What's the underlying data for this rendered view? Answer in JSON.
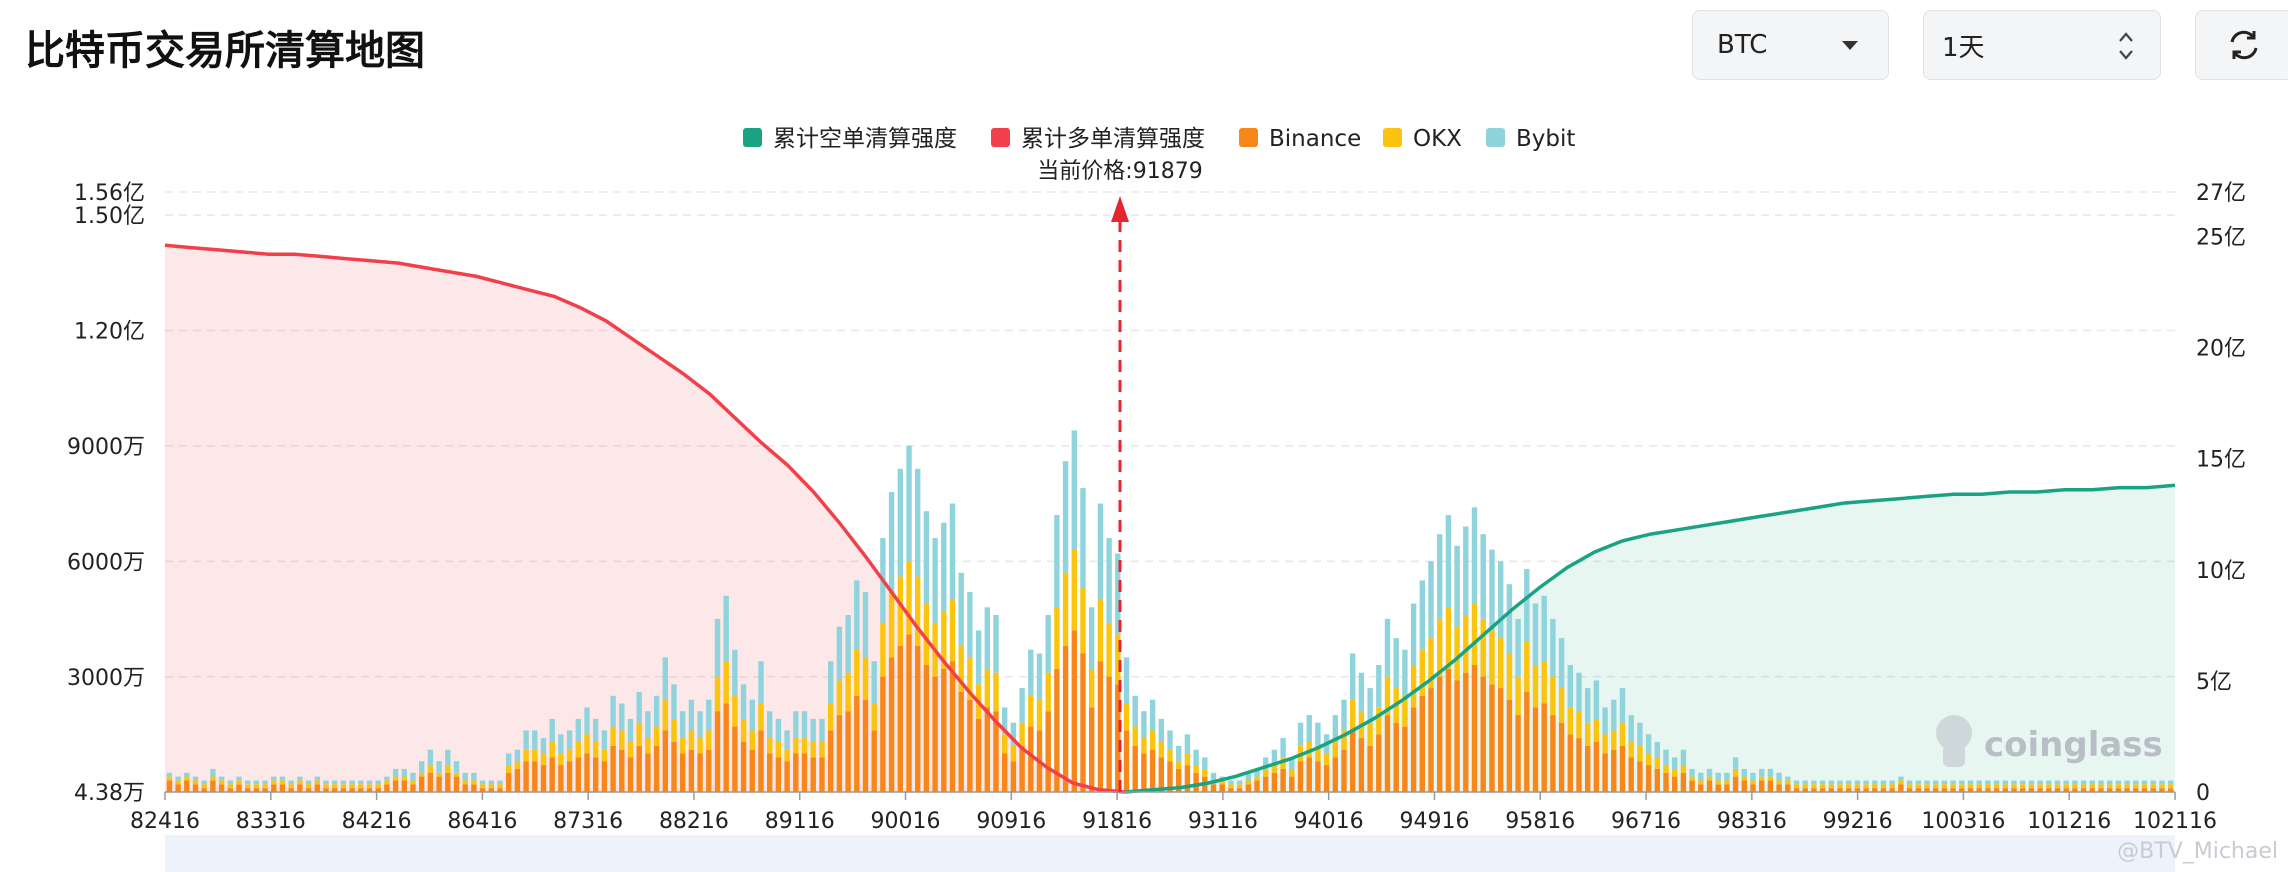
{
  "header": {
    "title": "比特币交易所清算地图",
    "symbol_select": "BTC",
    "period_select": "1天",
    "refresh_icon": "refresh-icon"
  },
  "watermark": {
    "brand": "coinglass",
    "user_tag": "@BTV_Michael"
  },
  "colors": {
    "short_cum": "#1aa383",
    "long_cum": "#f2404a",
    "binance": "#f7861b",
    "okx": "#fbc40f",
    "bybit": "#8fd4dd",
    "price_line": "#e5262e"
  },
  "chart_data": {
    "type": "bar",
    "current_price_label": "当前价格:91879",
    "current_price": 91879,
    "legend": [
      "累计空单清算强度",
      "累计多单清算强度",
      "Binance",
      "OKX",
      "Bybit"
    ],
    "legend_placement": "top-center",
    "x_tick_labels": [
      "82416",
      "83316",
      "84216",
      "86416",
      "87316",
      "88216",
      "89116",
      "90016",
      "90916",
      "91816",
      "93116",
      "94016",
      "94916",
      "95816",
      "96716",
      "98316",
      "99216",
      "100316",
      "101216",
      "102116"
    ],
    "y_left_tick_labels": [
      "1.56亿",
      "1.50亿",
      "1.20亿",
      "9000万",
      "6000万",
      "3000万",
      "4.38万"
    ],
    "y_left_ticks": [
      156000000,
      150000000,
      120000000,
      90000000,
      60000000,
      30000000,
      43800
    ],
    "y_left_range": [
      43800,
      156000000
    ],
    "y_right_tick_labels": [
      "27亿",
      "25亿",
      "20亿",
      "15亿",
      "10亿",
      "5亿",
      "0"
    ],
    "y_right_ticks": [
      2700000000,
      2500000000,
      2000000000,
      1500000000,
      1000000000,
      500000000,
      0
    ],
    "y_right_range": [
      0,
      2700000000
    ],
    "grid": true,
    "bars": {
      "binance": [
        3,
        2,
        3,
        2,
        1,
        3,
        2,
        1,
        2,
        1,
        1,
        1,
        2,
        2,
        1,
        2,
        1,
        2,
        1,
        1,
        1,
        1,
        1,
        1,
        1,
        2,
        3,
        3,
        2,
        4,
        5,
        4,
        5,
        4,
        2,
        2,
        1,
        1,
        1,
        5,
        6,
        8,
        8,
        7,
        9,
        7,
        8,
        9,
        10,
        9,
        8,
        12,
        11,
        9,
        12,
        10,
        12,
        16,
        13,
        10,
        11,
        10,
        11,
        21,
        23,
        17,
        13,
        11,
        16,
        10,
        9,
        8,
        10,
        10,
        9,
        9,
        16,
        20,
        21,
        25,
        24,
        16,
        30,
        35,
        38,
        41,
        38,
        33,
        30,
        32,
        34,
        26,
        24,
        19,
        22,
        21,
        10,
        8,
        12,
        17,
        16,
        21,
        32,
        38,
        42,
        36,
        22,
        34,
        30,
        28,
        16,
        12,
        10,
        11,
        9,
        8,
        6,
        7,
        5,
        4,
        2,
        2,
        1,
        1,
        2,
        3,
        4,
        5,
        6,
        4,
        8,
        9,
        8,
        7,
        9,
        11,
        16,
        14,
        12,
        15,
        20,
        18,
        17,
        22,
        25,
        27,
        30,
        32,
        29,
        31,
        33,
        30,
        28,
        27,
        24,
        20,
        26,
        22,
        23,
        20,
        18,
        15,
        14,
        12,
        13,
        10,
        11,
        12,
        9,
        8,
        7,
        6,
        5,
        4,
        5,
        3,
        2,
        3,
        2,
        2,
        4,
        3,
        2,
        3,
        3,
        2,
        2,
        1,
        1,
        1,
        1,
        1,
        1,
        1,
        1,
        1,
        1,
        1,
        1,
        2,
        1,
        1,
        1,
        1,
        1,
        1,
        1,
        1,
        1,
        1,
        1,
        1,
        1,
        1,
        1,
        1,
        1,
        1,
        1,
        1,
        1,
        1,
        1,
        1,
        1,
        1,
        1,
        1,
        1,
        1,
        1
      ],
      "okx": [
        1,
        1,
        1,
        1,
        1,
        1,
        1,
        1,
        1,
        1,
        1,
        1,
        1,
        1,
        1,
        1,
        1,
        1,
        1,
        1,
        1,
        1,
        1,
        1,
        1,
        1,
        1,
        1,
        1,
        1,
        2,
        1,
        2,
        1,
        1,
        1,
        1,
        1,
        1,
        2,
        2,
        3,
        3,
        3,
        4,
        3,
        3,
        4,
        5,
        4,
        3,
        5,
        5,
        4,
        6,
        4,
        5,
        8,
        6,
        4,
        5,
        4,
        5,
        9,
        11,
        8,
        6,
        5,
        7,
        4,
        4,
        3,
        4,
        4,
        4,
        4,
        7,
        9,
        10,
        12,
        11,
        7,
        14,
        17,
        18,
        19,
        18,
        16,
        14,
        15,
        16,
        12,
        11,
        9,
        10,
        10,
        5,
        4,
        6,
        8,
        8,
        10,
        16,
        19,
        21,
        17,
        10,
        16,
        14,
        13,
        7,
        5,
        4,
        5,
        4,
        3,
        2,
        3,
        2,
        2,
        1,
        1,
        1,
        1,
        1,
        1,
        2,
        2,
        3,
        2,
        4,
        4,
        4,
        3,
        4,
        5,
        8,
        7,
        6,
        7,
        10,
        9,
        8,
        11,
        12,
        13,
        15,
        16,
        14,
        15,
        16,
        15,
        14,
        13,
        12,
        10,
        13,
        11,
        11,
        10,
        9,
        7,
        7,
        6,
        6,
        5,
        5,
        6,
        4,
        4,
        3,
        3,
        2,
        2,
        2,
        1,
        1,
        1,
        1,
        1,
        2,
        1,
        1,
        1,
        1,
        1,
        1,
        1,
        1,
        1,
        1,
        1,
        1,
        1,
        1,
        1,
        1,
        1,
        1,
        1,
        1,
        1,
        1,
        1,
        1,
        1,
        1,
        1,
        1,
        1,
        1,
        1,
        1,
        1,
        1,
        1,
        1,
        1,
        1,
        1,
        1,
        1,
        1,
        1,
        1,
        1,
        1,
        1,
        1,
        1,
        1
      ],
      "bybit": [
        1,
        1,
        1,
        1,
        1,
        2,
        1,
        1,
        1,
        1,
        1,
        1,
        1,
        1,
        1,
        1,
        1,
        1,
        1,
        1,
        1,
        1,
        1,
        1,
        1,
        1,
        2,
        2,
        2,
        3,
        4,
        3,
        4,
        3,
        2,
        2,
        1,
        1,
        1,
        3,
        3,
        5,
        5,
        4,
        6,
        5,
        5,
        6,
        7,
        6,
        5,
        8,
        7,
        6,
        8,
        7,
        8,
        11,
        9,
        7,
        8,
        7,
        8,
        15,
        17,
        12,
        9,
        8,
        11,
        7,
        6,
        5,
        7,
        7,
        6,
        6,
        11,
        14,
        15,
        18,
        17,
        11,
        22,
        26,
        28,
        30,
        28,
        24,
        22,
        23,
        25,
        19,
        17,
        14,
        16,
        15,
        7,
        6,
        9,
        12,
        12,
        15,
        24,
        29,
        31,
        26,
        16,
        25,
        22,
        21,
        12,
        8,
        7,
        8,
        6,
        5,
        4,
        5,
        4,
        3,
        2,
        1,
        1,
        1,
        2,
        2,
        3,
        4,
        5,
        3,
        6,
        7,
        6,
        5,
        7,
        8,
        12,
        10,
        9,
        11,
        15,
        13,
        12,
        16,
        18,
        20,
        22,
        24,
        21,
        23,
        25,
        22,
        21,
        20,
        18,
        15,
        19,
        16,
        17,
        15,
        13,
        11,
        10,
        9,
        10,
        7,
        8,
        9,
        7,
        6,
        5,
        4,
        4,
        3,
        4,
        2,
        2,
        2,
        2,
        2,
        3,
        2,
        2,
        2,
        2,
        2,
        1,
        1,
        1,
        1,
        1,
        1,
        1,
        1,
        1,
        1,
        1,
        1,
        1,
        1,
        1,
        1,
        1,
        1,
        1,
        1,
        1,
        1,
        1,
        1,
        1,
        1,
        1,
        1,
        1,
        1,
        1,
        1,
        1,
        1,
        1,
        1,
        1,
        1,
        1,
        1,
        1,
        1,
        1,
        1,
        1
      ]
    },
    "bars_unit": "百万",
    "long_cum_curve_yi": [
      24.6,
      24.5,
      24.4,
      24.3,
      24.2,
      24.2,
      24.1,
      24.0,
      23.9,
      23.8,
      23.6,
      23.4,
      23.2,
      22.9,
      22.6,
      22.3,
      21.8,
      21.2,
      20.4,
      19.6,
      18.8,
      17.9,
      16.8,
      15.7,
      14.7,
      13.5,
      12.1,
      10.6,
      9.0,
      7.4,
      5.9,
      4.5,
      3.2,
      2.0,
      1.1,
      0.4,
      0.1,
      0
    ],
    "short_cum_curve_yi": [
      0,
      0.1,
      0.2,
      0.4,
      0.7,
      1.1,
      1.5,
      2.0,
      2.6,
      3.3,
      4.1,
      5.0,
      6.0,
      7.1,
      8.2,
      9.2,
      10.1,
      10.8,
      11.3,
      11.6,
      11.8,
      12.0,
      12.2,
      12.4,
      12.6,
      12.8,
      13.0,
      13.1,
      13.2,
      13.3,
      13.4,
      13.4,
      13.5,
      13.5,
      13.6,
      13.6,
      13.7,
      13.7,
      13.8
    ]
  }
}
